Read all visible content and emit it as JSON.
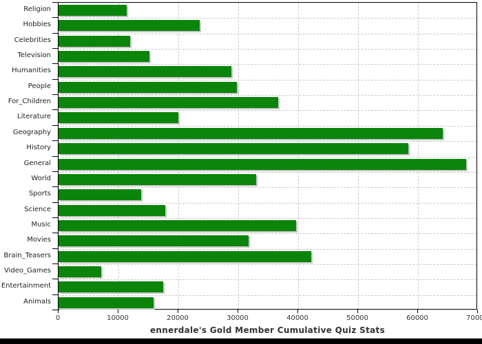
{
  "chart_data": {
    "type": "bar",
    "orientation": "horizontal",
    "title": "ennerdale's Gold Member Cumulative Quiz Stats",
    "categories": [
      "Religion",
      "Hobbies",
      "Celebrities",
      "Television",
      "Humanities",
      "People",
      "For_Children",
      "Literature",
      "Geography",
      "History",
      "General",
      "World",
      "Sports",
      "Science",
      "Music",
      "Movies",
      "Brain_Teasers",
      "Video_Games",
      "Entertainment",
      "Animals"
    ],
    "values": [
      11400,
      23600,
      11900,
      15200,
      28800,
      29800,
      36700,
      20000,
      64100,
      58400,
      68100,
      33000,
      13800,
      17800,
      39600,
      31700,
      42200,
      7100,
      17500,
      15900
    ],
    "xlim": [
      0,
      70000
    ],
    "x_ticks": [
      0,
      10000,
      20000,
      30000,
      40000,
      50000,
      60000,
      70000
    ],
    "x_tick_labels": [
      "0",
      "10000",
      "20000",
      "30000",
      "40000",
      "50000",
      "60000",
      "70000"
    ],
    "grid": true,
    "legend": "none",
    "bar_color": "#0b840b",
    "grid_color": "#c9c9c9",
    "axis_color": "#000000",
    "text_color": "#222222",
    "shadow_color": "#c6c6c6"
  }
}
